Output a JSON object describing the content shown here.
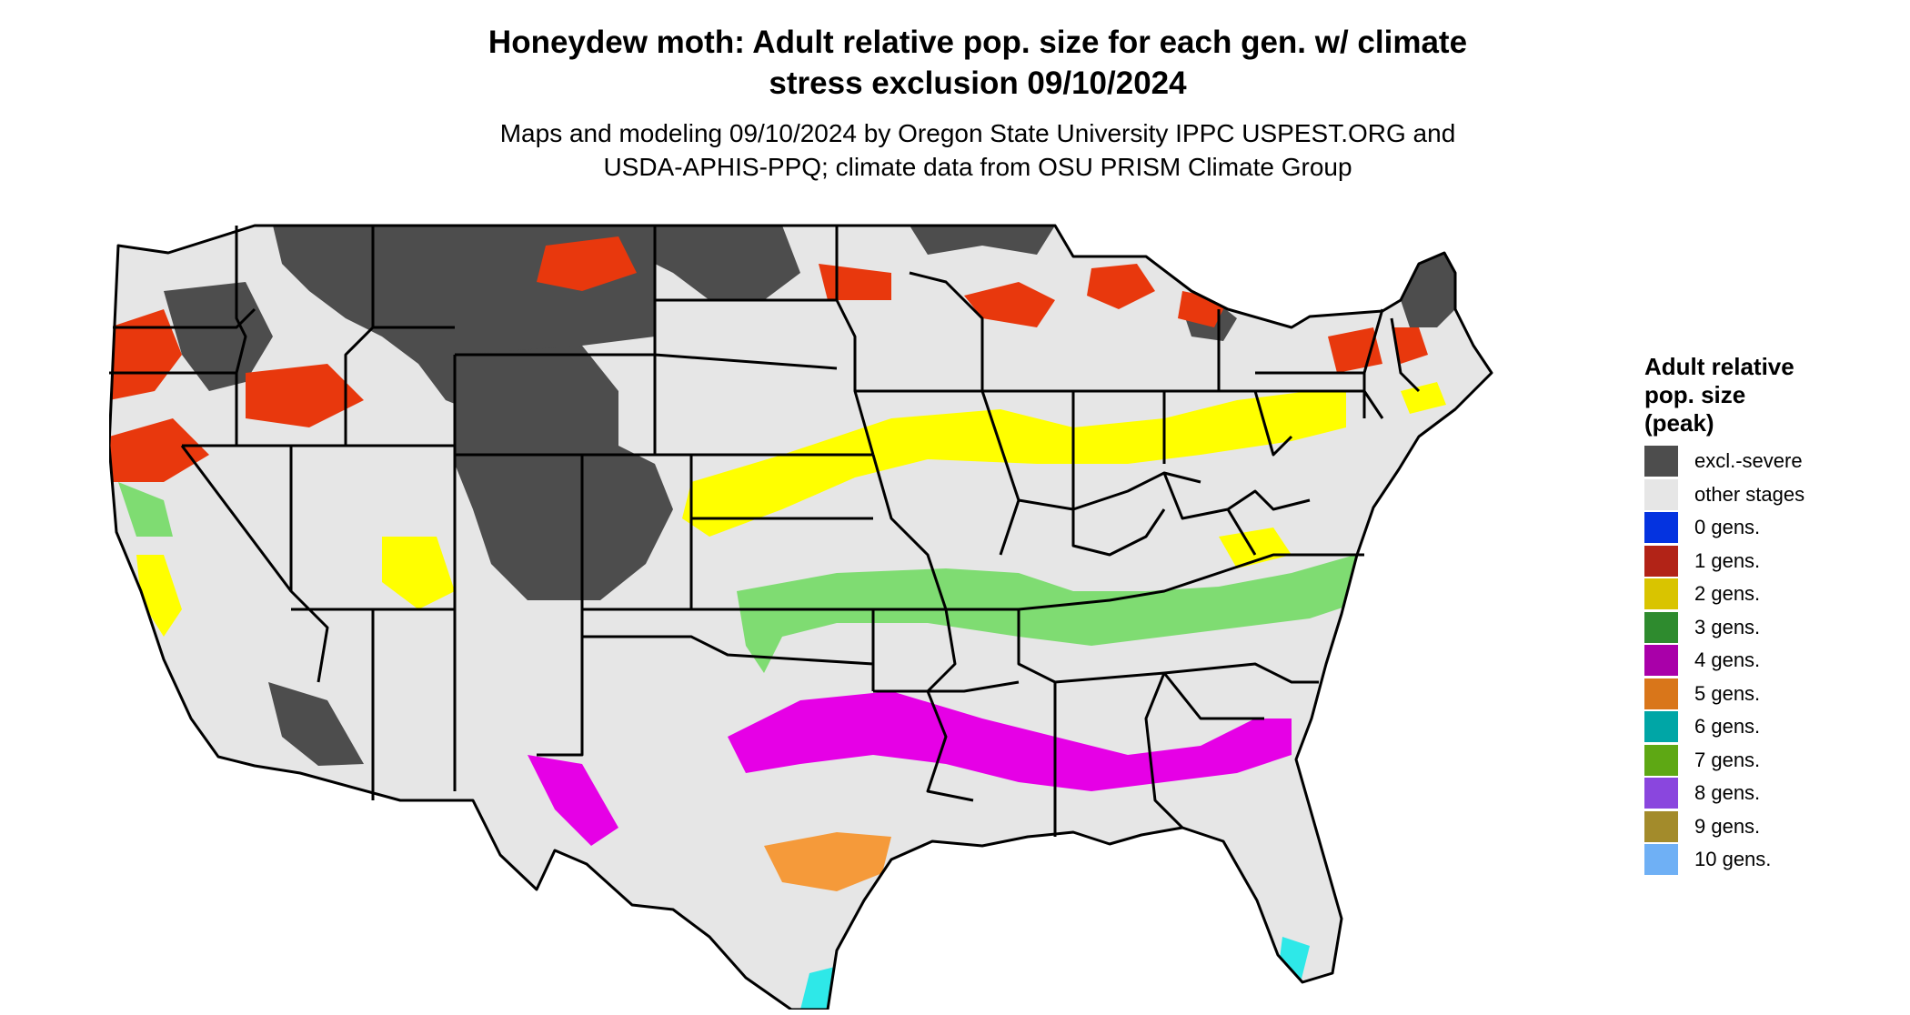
{
  "header": {
    "title_lines": [
      "Honeydew moth: Adult relative pop. size for each gen. w/ climate",
      "stress exclusion 09/10/2024"
    ],
    "subtitle_lines": [
      "Maps and modeling 09/10/2024 by Oregon State University IPPC USPEST.ORG and",
      "USDA-APHIS-PPQ; climate data from OSU PRISM Climate Group"
    ]
  },
  "legend": {
    "title_lines": [
      "Adult relative",
      "pop. size",
      "(peak)"
    ],
    "items": [
      {
        "label": "excl.-severe",
        "color": "#4d4d4d"
      },
      {
        "label": "other stages",
        "color": "#e6e6e6"
      },
      {
        "label": "0 gens.",
        "color": "#0433e0"
      },
      {
        "label": "1 gens.",
        "color": "#b22317"
      },
      {
        "label": "2 gens.",
        "color": "#d9c400"
      },
      {
        "label": "3 gens.",
        "color": "#2e8b2e"
      },
      {
        "label": "4 gens.",
        "color": "#a900a9"
      },
      {
        "label": "5 gens.",
        "color": "#d9761a"
      },
      {
        "label": "6 gens.",
        "color": "#00a6a6"
      },
      {
        "label": "7 gens.",
        "color": "#5ea814"
      },
      {
        "label": "8 gens.",
        "color": "#8a46de"
      },
      {
        "label": "9 gens.",
        "color": "#a38b2b"
      },
      {
        "label": "10 gens.",
        "color": "#6fb0f5"
      }
    ]
  },
  "map_colors": {
    "land": "#e6e6e6",
    "excluded": "#4d4d4d",
    "one_gen_band": "#e8380d",
    "two_gen_band": "#ffff00",
    "three_gen_band": "#7fdc72",
    "four_gen_band": "#e600e6",
    "five_gen_band": "#f59a3a",
    "six_gen_band": "#2ee8e8",
    "border": "#000000"
  }
}
